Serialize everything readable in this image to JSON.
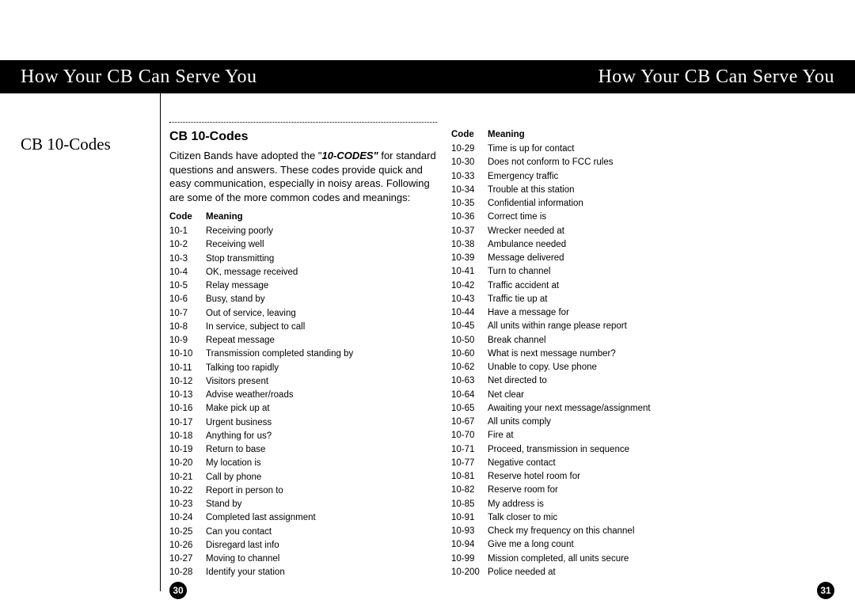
{
  "header": {
    "left": "How Your CB Can Serve You",
    "right": "How Your CB Can Serve You"
  },
  "side_title": "CB 10-Codes",
  "section_title": "CB 10-Codes",
  "intro_pre": "Citizen Bands have adopted the \"",
  "intro_em": "10-CODES\"",
  "intro_post": " for standard questions and answers.  These codes provide quick and easy communication, especially in noisy areas.  Following are some of the more common codes and meanings:",
  "table": {
    "code_header": "Code",
    "meaning_header": "Meaning"
  },
  "codes_left": [
    {
      "code": "10-1",
      "meaning": "Receiving poorly"
    },
    {
      "code": "10-2",
      "meaning": "Receiving well"
    },
    {
      "code": "10-3",
      "meaning": "Stop transmitting"
    },
    {
      "code": "10-4",
      "meaning": "OK, message received"
    },
    {
      "code": "10-5",
      "meaning": "Relay message"
    },
    {
      "code": "10-6",
      "meaning": "Busy, stand by"
    },
    {
      "code": "10-7",
      "meaning": "Out of service, leaving"
    },
    {
      "code": "10-8",
      "meaning": "In service, subject to call"
    },
    {
      "code": "10-9",
      "meaning": "Repeat message"
    },
    {
      "code": "10-10",
      "meaning": "Transmission completed standing by"
    },
    {
      "code": "10-11",
      "meaning": "Talking too rapidly"
    },
    {
      "code": "10-12",
      "meaning": "Visitors present"
    },
    {
      "code": "10-13",
      "meaning": "Advise weather/roads"
    },
    {
      "code": "10-16",
      "meaning": "Make pick up at"
    },
    {
      "code": "10-17",
      "meaning": "Urgent business"
    },
    {
      "code": "10-18",
      "meaning": "Anything for us?"
    },
    {
      "code": "10-19",
      "meaning": "Return to base"
    },
    {
      "code": "10-20",
      "meaning": "My location is"
    },
    {
      "code": "10-21",
      "meaning": "Call by phone"
    },
    {
      "code": "10-22",
      "meaning": "Report in person to"
    },
    {
      "code": "10-23",
      "meaning": "Stand by"
    },
    {
      "code": "10-24",
      "meaning": "Completed last assignment"
    },
    {
      "code": "10-25",
      "meaning": "Can you contact"
    },
    {
      "code": "10-26",
      "meaning": "Disregard last info"
    },
    {
      "code": "10-27",
      "meaning": "Moving to channel"
    },
    {
      "code": "10-28",
      "meaning": "Identify your station"
    }
  ],
  "codes_right": [
    {
      "code": "10-29",
      "meaning": "Time is up for contact"
    },
    {
      "code": "10-30",
      "meaning": "Does not conform to FCC rules"
    },
    {
      "code": "10-33",
      "meaning": "Emergency traffic"
    },
    {
      "code": "10-34",
      "meaning": "Trouble at this station"
    },
    {
      "code": "10-35",
      "meaning": "Confidential information"
    },
    {
      "code": "10-36",
      "meaning": "Correct time is"
    },
    {
      "code": "10-37",
      "meaning": "Wrecker needed at"
    },
    {
      "code": "10-38",
      "meaning": "Ambulance needed"
    },
    {
      "code": "10-39",
      "meaning": "Message delivered"
    },
    {
      "code": "10-41",
      "meaning": "Turn to channel"
    },
    {
      "code": "10-42",
      "meaning": "Traffic accident at"
    },
    {
      "code": "10-43",
      "meaning": "Traffic tie up at"
    },
    {
      "code": "10-44",
      "meaning": "Have a message for"
    },
    {
      "code": "10-45",
      "meaning": "All units within range please report"
    },
    {
      "code": "10-50",
      "meaning": "Break channel"
    },
    {
      "code": "10-60",
      "meaning": "What is next  message number?"
    },
    {
      "code": "10-62",
      "meaning": "Unable to copy. Use phone"
    },
    {
      "code": "10-63",
      "meaning": "Net directed to"
    },
    {
      "code": "10-64",
      "meaning": "Net clear"
    },
    {
      "code": "10-65",
      "meaning": "Awaiting your next message/assignment"
    },
    {
      "code": "10-67",
      "meaning": "All units comply"
    },
    {
      "code": "10-70",
      "meaning": "Fire at"
    },
    {
      "code": "10-71",
      "meaning": "Proceed,  transmission in sequence"
    },
    {
      "code": "10-77",
      "meaning": "Negative contact"
    },
    {
      "code": "10-81",
      "meaning": "Reserve hotel room for"
    },
    {
      "code": "10-82",
      "meaning": "Reserve room for"
    },
    {
      "code": "10-85",
      "meaning": "My address is"
    },
    {
      "code": "10-91",
      "meaning": "Talk closer to mic"
    },
    {
      "code": "10-93",
      "meaning": "Check my frequency on this channel"
    },
    {
      "code": "10-94",
      "meaning": "Give me a long count"
    },
    {
      "code": "10-99",
      "meaning": "Mission completed, all units secure"
    },
    {
      "code": "10-200",
      "meaning": "Police needed at"
    }
  ],
  "page_left": "30",
  "page_right": "31"
}
